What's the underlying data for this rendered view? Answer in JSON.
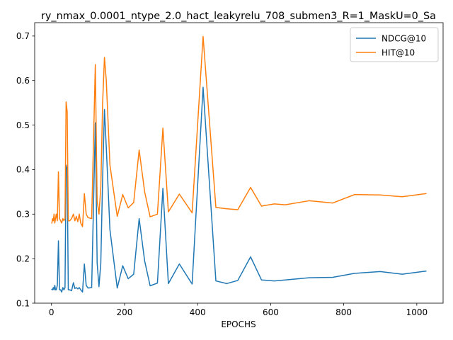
{
  "chart_data": {
    "type": "line",
    "title": "ry_nmax_0.0001_ntype_2.0_hact_leakyrelu_708_submen3_R=1_MaskU=0_Sa",
    "xlabel": "EPOCHS",
    "ylabel": "",
    "xlim": [
      -46,
      1072
    ],
    "ylim": [
      0.1,
      0.73
    ],
    "xticks": [
      0,
      200,
      400,
      600,
      800,
      1000
    ],
    "yticks": [
      0.1,
      0.2,
      0.3,
      0.4,
      0.5,
      0.6,
      0.7
    ],
    "xtick_labels": [
      "0",
      "200",
      "400",
      "600",
      "800",
      "1000"
    ],
    "ytick_labels": [
      "0.1",
      "0.2",
      "0.3",
      "0.4",
      "0.5",
      "0.6",
      "0.7"
    ],
    "grid": false,
    "legend_position": "top-right",
    "series": [
      {
        "name": "NDCG@10",
        "color": "#1f77b4",
        "x": [
          1,
          3,
          5,
          7,
          9,
          11,
          13,
          16,
          19,
          22,
          25,
          28,
          31,
          34,
          37,
          40,
          43,
          46,
          50,
          55,
          60,
          64,
          68,
          72,
          76,
          80,
          85,
          90,
          95,
          100,
          110,
          120,
          125,
          130,
          135,
          140,
          145,
          150,
          160,
          180,
          195,
          210,
          225,
          240,
          255,
          270,
          290,
          305,
          320,
          350,
          385,
          415,
          450,
          480,
          510,
          545,
          575,
          610,
          640,
          705,
          770,
          830,
          900,
          960,
          1025
        ],
        "y": [
          0.131,
          0.13,
          0.135,
          0.13,
          0.14,
          0.13,
          0.13,
          0.14,
          0.24,
          0.13,
          0.13,
          0.125,
          0.135,
          0.13,
          0.135,
          0.41,
          0.4,
          0.13,
          0.13,
          0.128,
          0.146,
          0.133,
          0.135,
          0.132,
          0.135,
          0.13,
          0.125,
          0.188,
          0.14,
          0.134,
          0.135,
          0.505,
          0.19,
          0.137,
          0.19,
          0.38,
          0.535,
          0.45,
          0.265,
          0.134,
          0.184,
          0.155,
          0.165,
          0.29,
          0.195,
          0.139,
          0.145,
          0.358,
          0.144,
          0.188,
          0.143,
          0.585,
          0.15,
          0.144,
          0.151,
          0.204,
          0.152,
          0.15,
          0.152,
          0.157,
          0.158,
          0.167,
          0.171,
          0.165,
          0.172
        ]
      },
      {
        "name": "HIT@10",
        "color": "#ff7f0e",
        "x": [
          1,
          3,
          5,
          7,
          9,
          11,
          13,
          16,
          19,
          22,
          25,
          28,
          31,
          34,
          37,
          40,
          43,
          46,
          50,
          55,
          60,
          64,
          68,
          72,
          76,
          80,
          85,
          90,
          95,
          100,
          110,
          120,
          125,
          130,
          135,
          140,
          145,
          150,
          160,
          180,
          195,
          210,
          225,
          240,
          255,
          270,
          290,
          305,
          320,
          350,
          385,
          415,
          450,
          480,
          510,
          545,
          575,
          610,
          640,
          705,
          770,
          830,
          900,
          960,
          1025
        ],
        "y": [
          0.28,
          0.29,
          0.285,
          0.3,
          0.28,
          0.29,
          0.3,
          0.285,
          0.395,
          0.29,
          0.285,
          0.28,
          0.29,
          0.285,
          0.29,
          0.552,
          0.53,
          0.285,
          0.285,
          0.29,
          0.3,
          0.285,
          0.295,
          0.283,
          0.3,
          0.28,
          0.272,
          0.346,
          0.3,
          0.292,
          0.29,
          0.636,
          0.33,
          0.3,
          0.36,
          0.55,
          0.652,
          0.6,
          0.41,
          0.295,
          0.344,
          0.314,
          0.326,
          0.444,
          0.35,
          0.294,
          0.3,
          0.493,
          0.305,
          0.345,
          0.303,
          0.699,
          0.315,
          0.312,
          0.31,
          0.36,
          0.318,
          0.323,
          0.321,
          0.33,
          0.325,
          0.344,
          0.343,
          0.339,
          0.346
        ]
      }
    ]
  }
}
